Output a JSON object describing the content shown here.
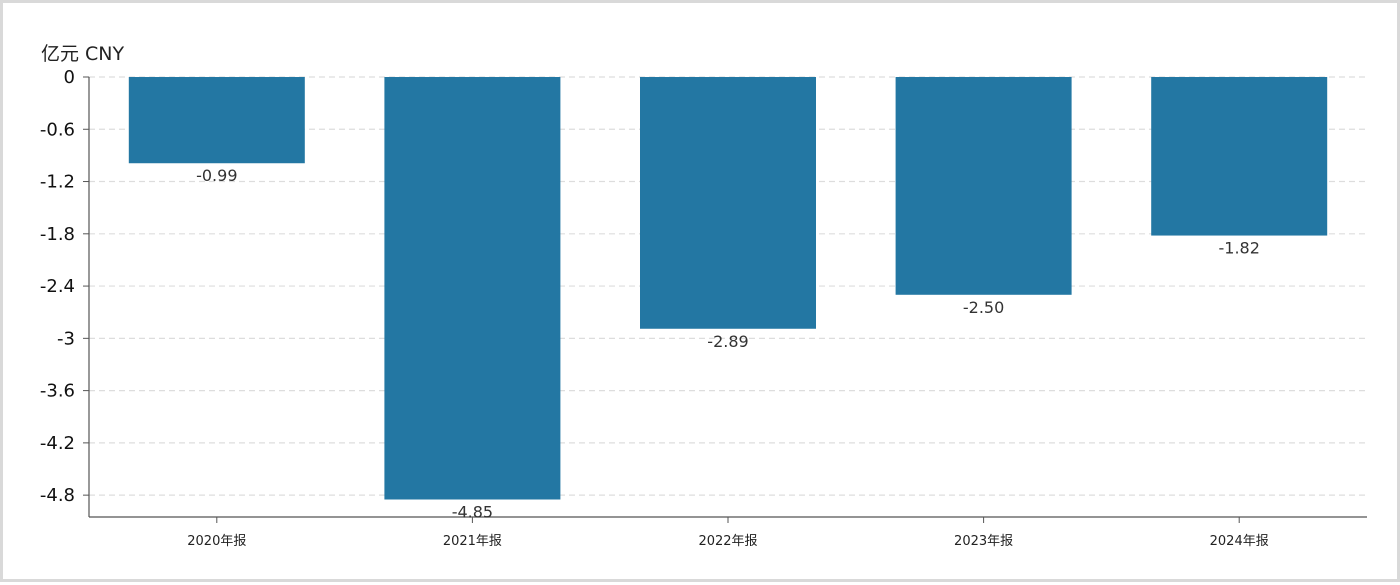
{
  "chart_data": {
    "type": "bar",
    "unit_label": "亿元  CNY",
    "categories": [
      "2020年报",
      "2021年报",
      "2022年报",
      "2023年报",
      "2024年报"
    ],
    "values": [
      -0.99,
      -4.85,
      -2.89,
      -2.5,
      -1.82
    ],
    "value_labels": [
      "-0.99",
      "-4.85",
      "-2.89",
      "-2.50",
      "-1.82"
    ],
    "ylim": [
      -5.0,
      0
    ],
    "yticks": [
      0,
      -0.6,
      -1.2,
      -1.8,
      -2.4,
      -3,
      -3.6,
      -4.2,
      -4.8
    ],
    "ytick_labels": [
      "0",
      "-0.6",
      "-1.2",
      "-1.8",
      "-2.4",
      "-3",
      "-3.6",
      "-4.2",
      "-4.8"
    ],
    "grid": true,
    "colors": {
      "bar": "#2377a3",
      "grid": "#dddddd",
      "axis": "#555555"
    }
  }
}
